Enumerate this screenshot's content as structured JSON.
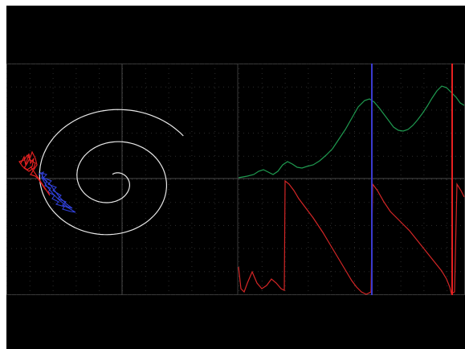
{
  "colors": {
    "background": "#000000",
    "frame": "#3a3a3a",
    "grid_dot": "#2e2e2e",
    "axis": "#4a4a4a",
    "spiral": "#e8e8e8",
    "phase_red": "#e02020",
    "phase_blue": "#3040d8",
    "trace_green": "#1f9a50",
    "trace_red": "#d42626",
    "cursor_blue": "#3a3ad0",
    "cursor_red": "#e82020"
  },
  "panels": {
    "phase_plot": {
      "name": "phase-portrait-panel"
    },
    "time_plot": {
      "name": "time-series-panel"
    }
  },
  "cursors": [
    {
      "name": "blue-cursor",
      "color": "#3a3ad0"
    },
    {
      "name": "red-cursor",
      "color": "#e82020"
    }
  ]
}
